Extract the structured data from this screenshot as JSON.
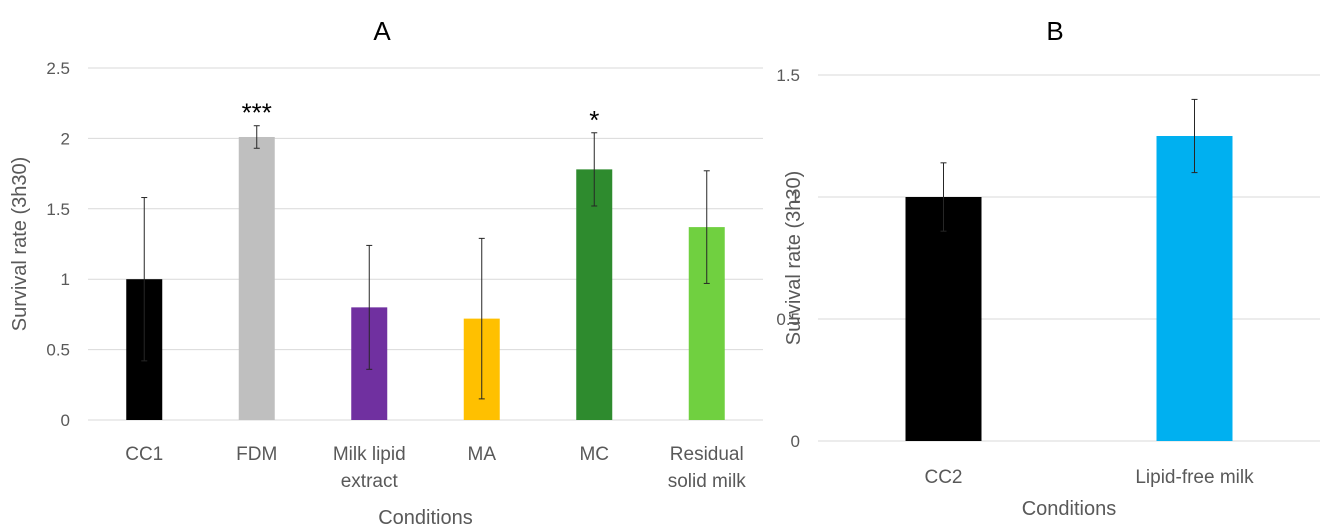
{
  "chart_data": [
    {
      "type": "bar",
      "title": "A",
      "xlabel": "Conditions",
      "ylabel": "Survival rate (3h30)",
      "ylim": [
        0,
        2.5
      ],
      "yticks": [
        "0",
        "0.5",
        "1",
        "1.5",
        "2",
        "2.5"
      ],
      "grid": true,
      "categories": [
        {
          "lines": [
            "CC1"
          ]
        },
        {
          "lines": [
            "FDM"
          ]
        },
        {
          "lines": [
            "Milk lipid",
            "extract"
          ]
        },
        {
          "lines": [
            "MA"
          ]
        },
        {
          "lines": [
            "MC"
          ]
        },
        {
          "lines": [
            "Residual",
            "solid milk"
          ]
        }
      ],
      "values": [
        1.0,
        2.01,
        0.8,
        0.72,
        1.78,
        1.37
      ],
      "errors": [
        0.58,
        0.08,
        0.44,
        0.57,
        0.26,
        0.4
      ],
      "colors": [
        "#000000",
        "#bfbfbf",
        "#7030a0",
        "#ffc000",
        "#2e8b2e",
        "#70d040"
      ],
      "annotations": [
        "",
        "***",
        "",
        "",
        "*",
        ""
      ]
    },
    {
      "type": "bar",
      "title": "B",
      "xlabel": "Conditions",
      "ylabel": "Survival rate (3h30)",
      "ylim": [
        0,
        1.5
      ],
      "yticks": [
        "0",
        "0.5",
        "1",
        "1.5"
      ],
      "grid": true,
      "categories": [
        {
          "lines": [
            "CC2"
          ]
        },
        {
          "lines": [
            "Lipid-free milk"
          ]
        }
      ],
      "values": [
        1.0,
        1.25
      ],
      "errors": [
        0.14,
        0.15
      ],
      "colors": [
        "#000000",
        "#00b0f0"
      ],
      "annotations": [
        "",
        ""
      ]
    }
  ]
}
